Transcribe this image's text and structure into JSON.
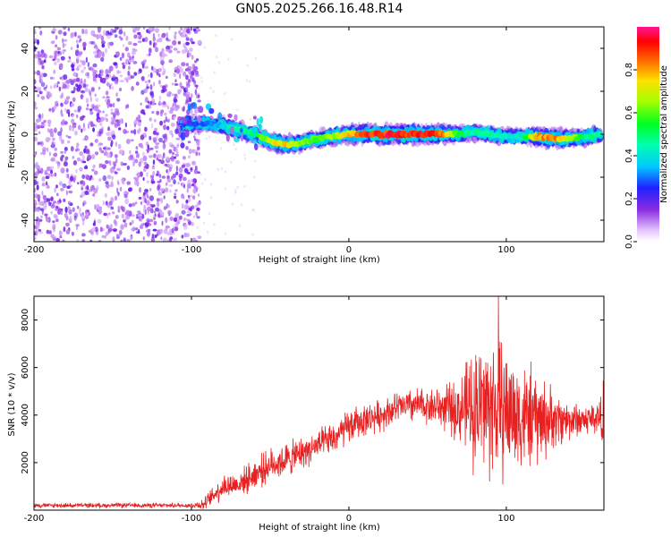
{
  "title": "GN05.2025.266.16.48.R14",
  "colors": {
    "snr_line": "#e82020",
    "trace_peak": "#e60012",
    "noise_dots": "#7c1fe0",
    "axes": "#000000"
  },
  "chart_data": [
    {
      "type": "heatmap",
      "name": "spectrogram",
      "xlabel": "Height of straight line (km)",
      "ylabel": "Frequency (Hz)",
      "xlim": [
        -200,
        162
      ],
      "ylim": [
        -50,
        50
      ],
      "xticks": [
        -200,
        -100,
        0,
        100
      ],
      "yticks": [
        -40,
        -20,
        0,
        20,
        40
      ],
      "noise_region_x": [
        -200,
        -97
      ],
      "trace": {
        "x": [
          -107,
          -100,
          -90,
          -80,
          -70,
          -60,
          -50,
          -40,
          -30,
          -20,
          -10,
          0,
          10,
          20,
          30,
          40,
          50,
          60,
          70,
          80,
          90,
          100,
          110,
          120,
          130,
          140,
          150,
          160
        ],
        "freq": [
          4,
          5,
          5,
          4,
          2,
          0,
          -3,
          -5,
          -4,
          -2,
          -1,
          0,
          0,
          0,
          0,
          0,
          0,
          0,
          0,
          1,
          0,
          -1,
          -1,
          -1,
          -2,
          -2,
          -1,
          0
        ],
        "amplitude": [
          0.25,
          0.3,
          0.3,
          0.4,
          0.5,
          0.55,
          0.75,
          0.85,
          0.7,
          0.6,
          0.7,
          0.8,
          0.95,
          0.98,
          1.0,
          0.98,
          0.95,
          0.9,
          0.6,
          0.5,
          0.5,
          0.45,
          0.45,
          0.9,
          0.9,
          0.75,
          0.55,
          0.5
        ]
      },
      "colorbar": {
        "label": "Normalized spectral amplitude",
        "range": [
          0,
          1
        ],
        "ticks": [
          0.0,
          0.2,
          0.4,
          0.6,
          0.8
        ]
      }
    },
    {
      "type": "line",
      "name": "snr",
      "xlabel": "Height of straight line (km)",
      "ylabel": "SNR (10 * v/v)",
      "xlim": [
        -200,
        162
      ],
      "ylim": [
        0,
        9000
      ],
      "xticks": [
        -200,
        -100,
        0,
        100
      ],
      "yticks": [
        2000,
        4000,
        6000,
        8000
      ],
      "envelope": {
        "x": [
          -200,
          -150,
          -100,
          -92,
          -85,
          -80,
          -70,
          -60,
          -50,
          -40,
          -30,
          -20,
          -10,
          0,
          10,
          20,
          30,
          40,
          50,
          60,
          70,
          75,
          80,
          85,
          90,
          95,
          100,
          105,
          110,
          115,
          120,
          125,
          130,
          140,
          150,
          155,
          160,
          162
        ],
        "mean": [
          200,
          200,
          200,
          250,
          700,
          1000,
          1100,
          1500,
          1900,
          2100,
          2400,
          2700,
          3000,
          3500,
          3800,
          4000,
          4300,
          4400,
          4400,
          4300,
          4200,
          4300,
          4400,
          4400,
          4400,
          4300,
          4200,
          4100,
          3900,
          3900,
          3800,
          3800,
          3800,
          3800,
          3800,
          3900,
          3900,
          4000
        ],
        "spread": [
          120,
          120,
          120,
          300,
          500,
          700,
          600,
          800,
          800,
          900,
          800,
          800,
          800,
          900,
          800,
          800,
          800,
          900,
          900,
          1100,
          1600,
          2400,
          3200,
          3600,
          3800,
          3600,
          3400,
          3000,
          2800,
          2600,
          2400,
          2000,
          1500,
          1000,
          800,
          800,
          1200,
          1800
        ]
      },
      "peak": {
        "x": 95,
        "y": 9000
      }
    }
  ]
}
